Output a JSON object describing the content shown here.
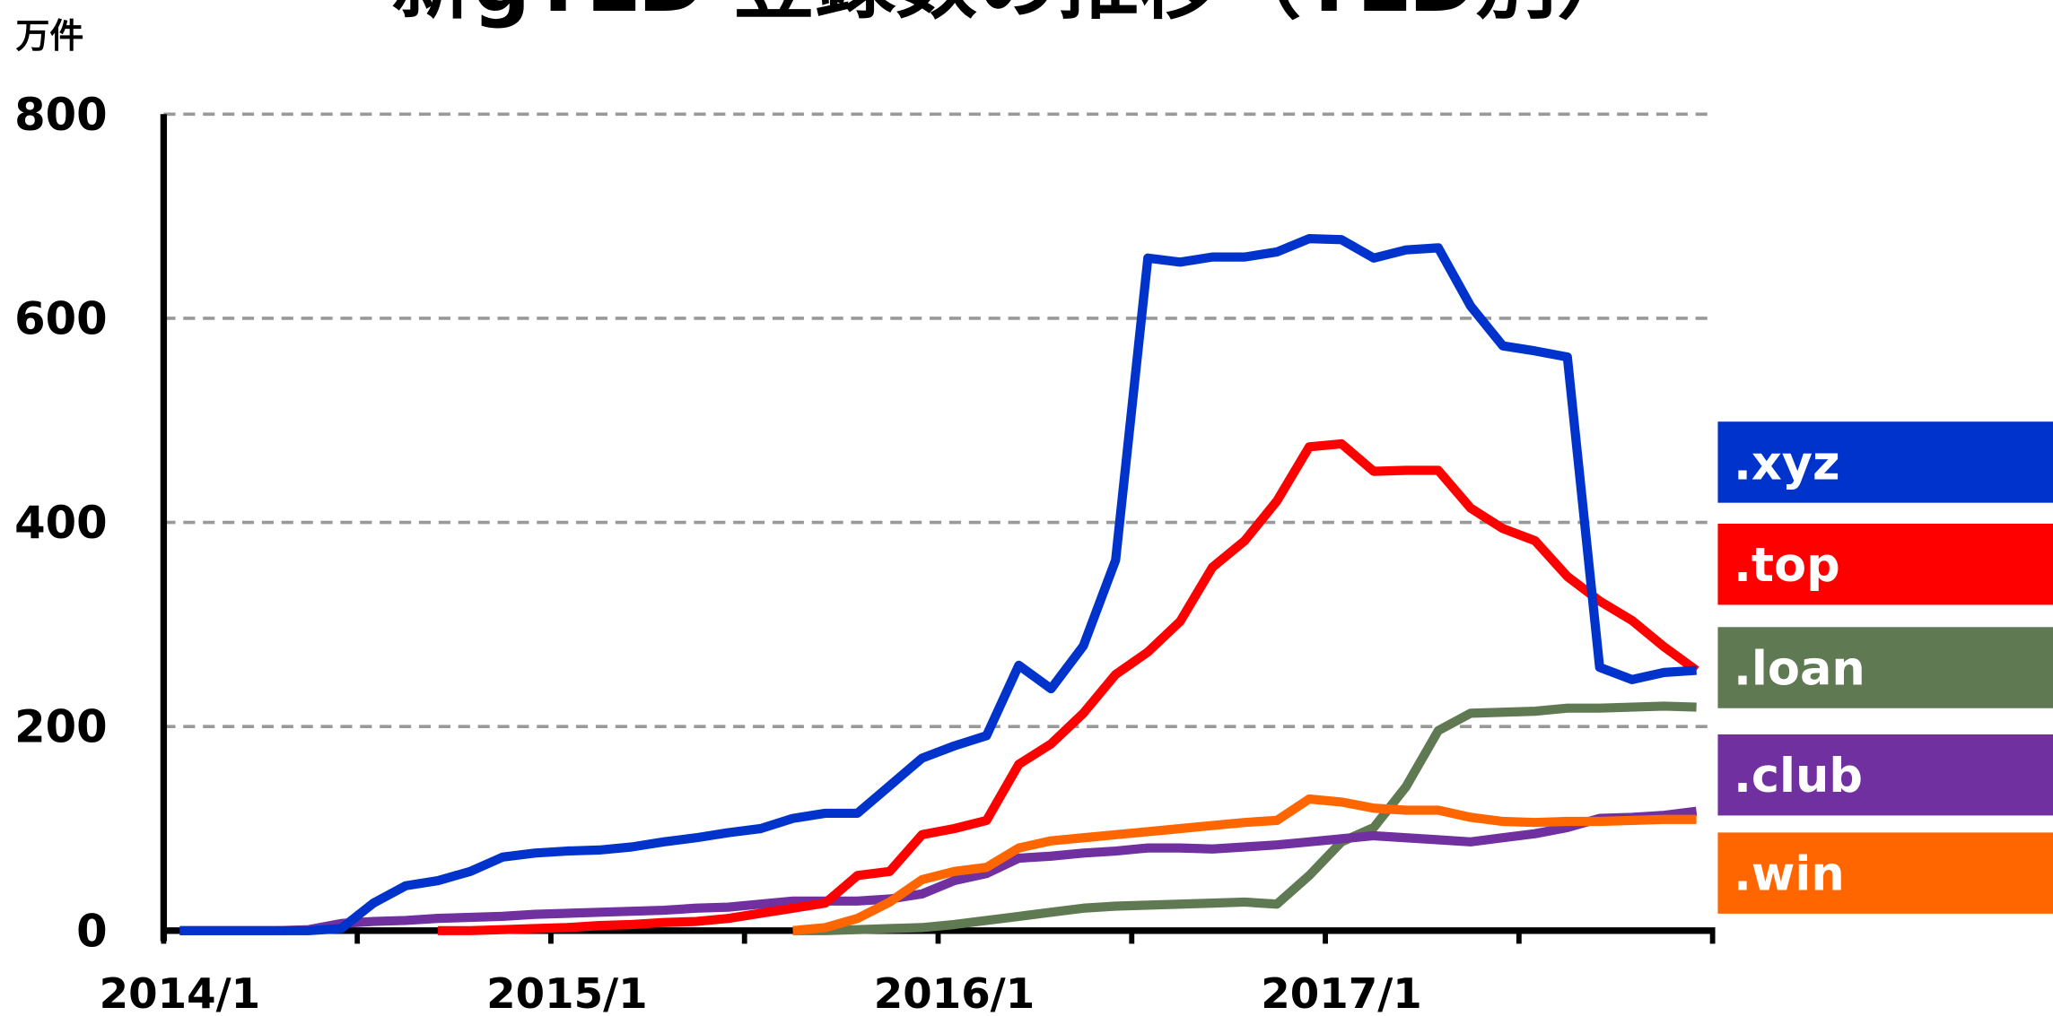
{
  "chart_data": {
    "type": "line",
    "title": "新gTLD 登録数の推移（TLD別）",
    "y_unit_label": "万件",
    "categories": [
      "2014/1",
      null,
      null,
      null,
      null,
      null,
      null,
      null,
      null,
      null,
      null,
      null,
      "2015/1",
      null,
      null,
      null,
      null,
      null,
      null,
      null,
      null,
      null,
      null,
      null,
      "2016/1",
      null,
      null,
      null,
      null,
      null,
      null,
      null,
      null,
      null,
      null,
      null,
      "2017/1",
      null,
      null,
      null,
      null,
      null,
      null,
      null,
      null,
      null,
      null,
      null
    ],
    "ylim": [
      0,
      800
    ],
    "yticks": [
      0,
      200,
      400,
      600,
      800
    ],
    "grid": true,
    "legend": "right",
    "series": [
      {
        "name": ".xyz",
        "color": "#0033cc",
        "values": [
          0,
          0,
          0,
          0,
          0,
          2,
          27,
          44,
          49,
          58,
          72,
          76,
          78,
          79,
          82,
          87,
          91,
          96,
          100,
          110,
          115,
          115,
          142,
          169,
          181,
          191,
          260,
          237,
          279,
          363,
          659,
          655,
          660,
          660,
          665,
          678,
          677,
          659,
          667,
          669,
          612,
          573,
          568,
          562,
          258,
          246,
          253,
          255
        ]
      },
      {
        "name": ".top",
        "color": "#ff0000",
        "values": [
          null,
          null,
          null,
          null,
          null,
          null,
          null,
          null,
          0,
          0,
          1,
          2,
          3,
          5,
          6,
          8,
          9,
          12,
          17,
          22,
          27,
          54,
          58,
          94,
          100,
          108,
          163,
          183,
          213,
          251,
          273,
          303,
          356,
          382,
          421,
          474,
          477,
          450,
          451,
          451,
          414,
          394,
          382,
          347,
          323,
          304,
          278,
          255
        ]
      },
      {
        "name": ".loan",
        "color": "#5f7a52",
        "values": [
          null,
          null,
          null,
          null,
          null,
          null,
          null,
          null,
          null,
          null,
          null,
          null,
          null,
          null,
          null,
          null,
          null,
          null,
          null,
          0,
          0,
          1,
          2,
          3,
          6,
          10,
          14,
          18,
          22,
          24,
          25,
          26,
          27,
          28,
          26,
          54,
          87,
          101,
          141,
          196,
          213,
          214,
          215,
          218,
          218,
          219,
          220,
          219
        ]
      },
      {
        "name": ".club",
        "color": "#7030a0",
        "values": [
          0,
          0,
          0,
          0,
          1,
          7,
          9,
          10,
          12,
          13,
          14,
          16,
          17,
          18,
          19,
          20,
          22,
          23,
          26,
          29,
          29,
          29,
          31,
          36,
          49,
          56,
          71,
          73,
          76,
          78,
          81,
          81,
          80,
          82,
          84,
          87,
          90,
          93,
          91,
          89,
          87,
          91,
          95,
          101,
          110,
          111,
          113,
          117
        ]
      },
      {
        "name": ".win",
        "color": "#ff6600",
        "values": [
          null,
          null,
          null,
          0,
          0,
          null,
          null,
          null,
          null,
          null,
          null,
          null,
          null,
          null,
          null,
          null,
          null,
          null,
          null,
          0,
          3,
          12,
          28,
          50,
          58,
          62,
          81,
          88,
          91,
          94,
          97,
          100,
          103,
          106,
          108,
          129,
          126,
          120,
          118,
          118,
          111,
          107,
          106,
          107,
          107,
          108,
          109,
          109
        ]
      }
    ]
  }
}
